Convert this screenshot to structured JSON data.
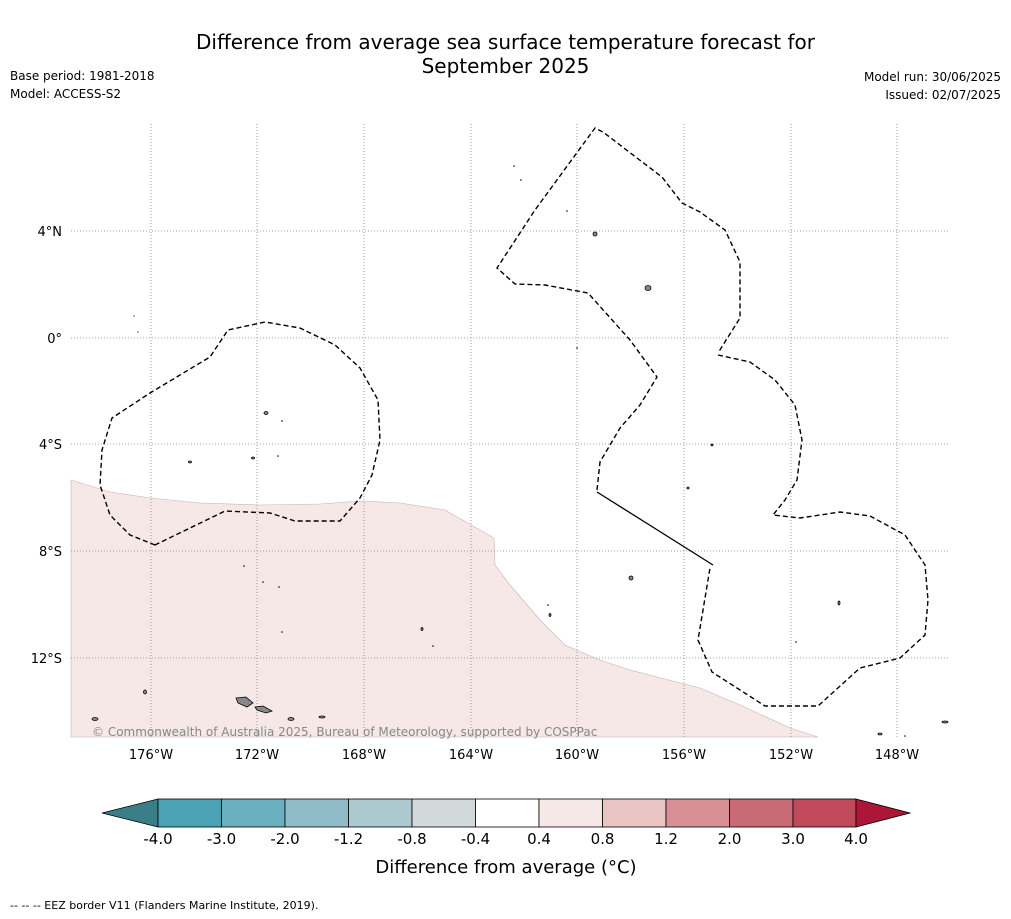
{
  "header": {
    "title_line1": "Difference from average sea surface temperature forecast for",
    "title_line2": "September 2025",
    "base_period": "Base period: 1981-2018",
    "model": "Model: ACCESS-S2",
    "model_run": "Model run: 30/06/2025",
    "issued": "Issued: 02/07/2025"
  },
  "map": {
    "longitude_labels": [
      "176°W",
      "172°W",
      "168°W",
      "164°W",
      "160°W",
      "156°W",
      "152°W",
      "148°W"
    ],
    "latitude_labels": [
      "4°N",
      "0°",
      "4°S",
      "8°S",
      "12°S"
    ],
    "copyright": "© Commonwealth of Australia 2025, Bureau of Meteorology, supported by COSPPac",
    "grid": true,
    "anomaly_region_class": "0.4 to 0.8"
  },
  "colorbar": {
    "label": "Difference from average (°C)",
    "tick_labels": [
      "-4.0",
      "-3.0",
      "-2.0",
      "-1.2",
      "-0.8",
      "-0.4",
      "0.4",
      "0.8",
      "1.2",
      "2.0",
      "3.0",
      "4.0"
    ],
    "colors": {
      "below_min": "#3a7f88",
      "bins": [
        "#4aa3b4",
        "#6ab0be",
        "#8fbcc6",
        "#abc9ce",
        "#d2d9da",
        "#ffffff",
        "#f5e8e7",
        "#e8c5c2",
        "#d98f96",
        "#c96b75",
        "#c04a5a"
      ],
      "above_max": "#ad1737"
    }
  },
  "footnote": "--  --  -- EEZ border V11 (Flanders Marine Institute, 2019)."
}
